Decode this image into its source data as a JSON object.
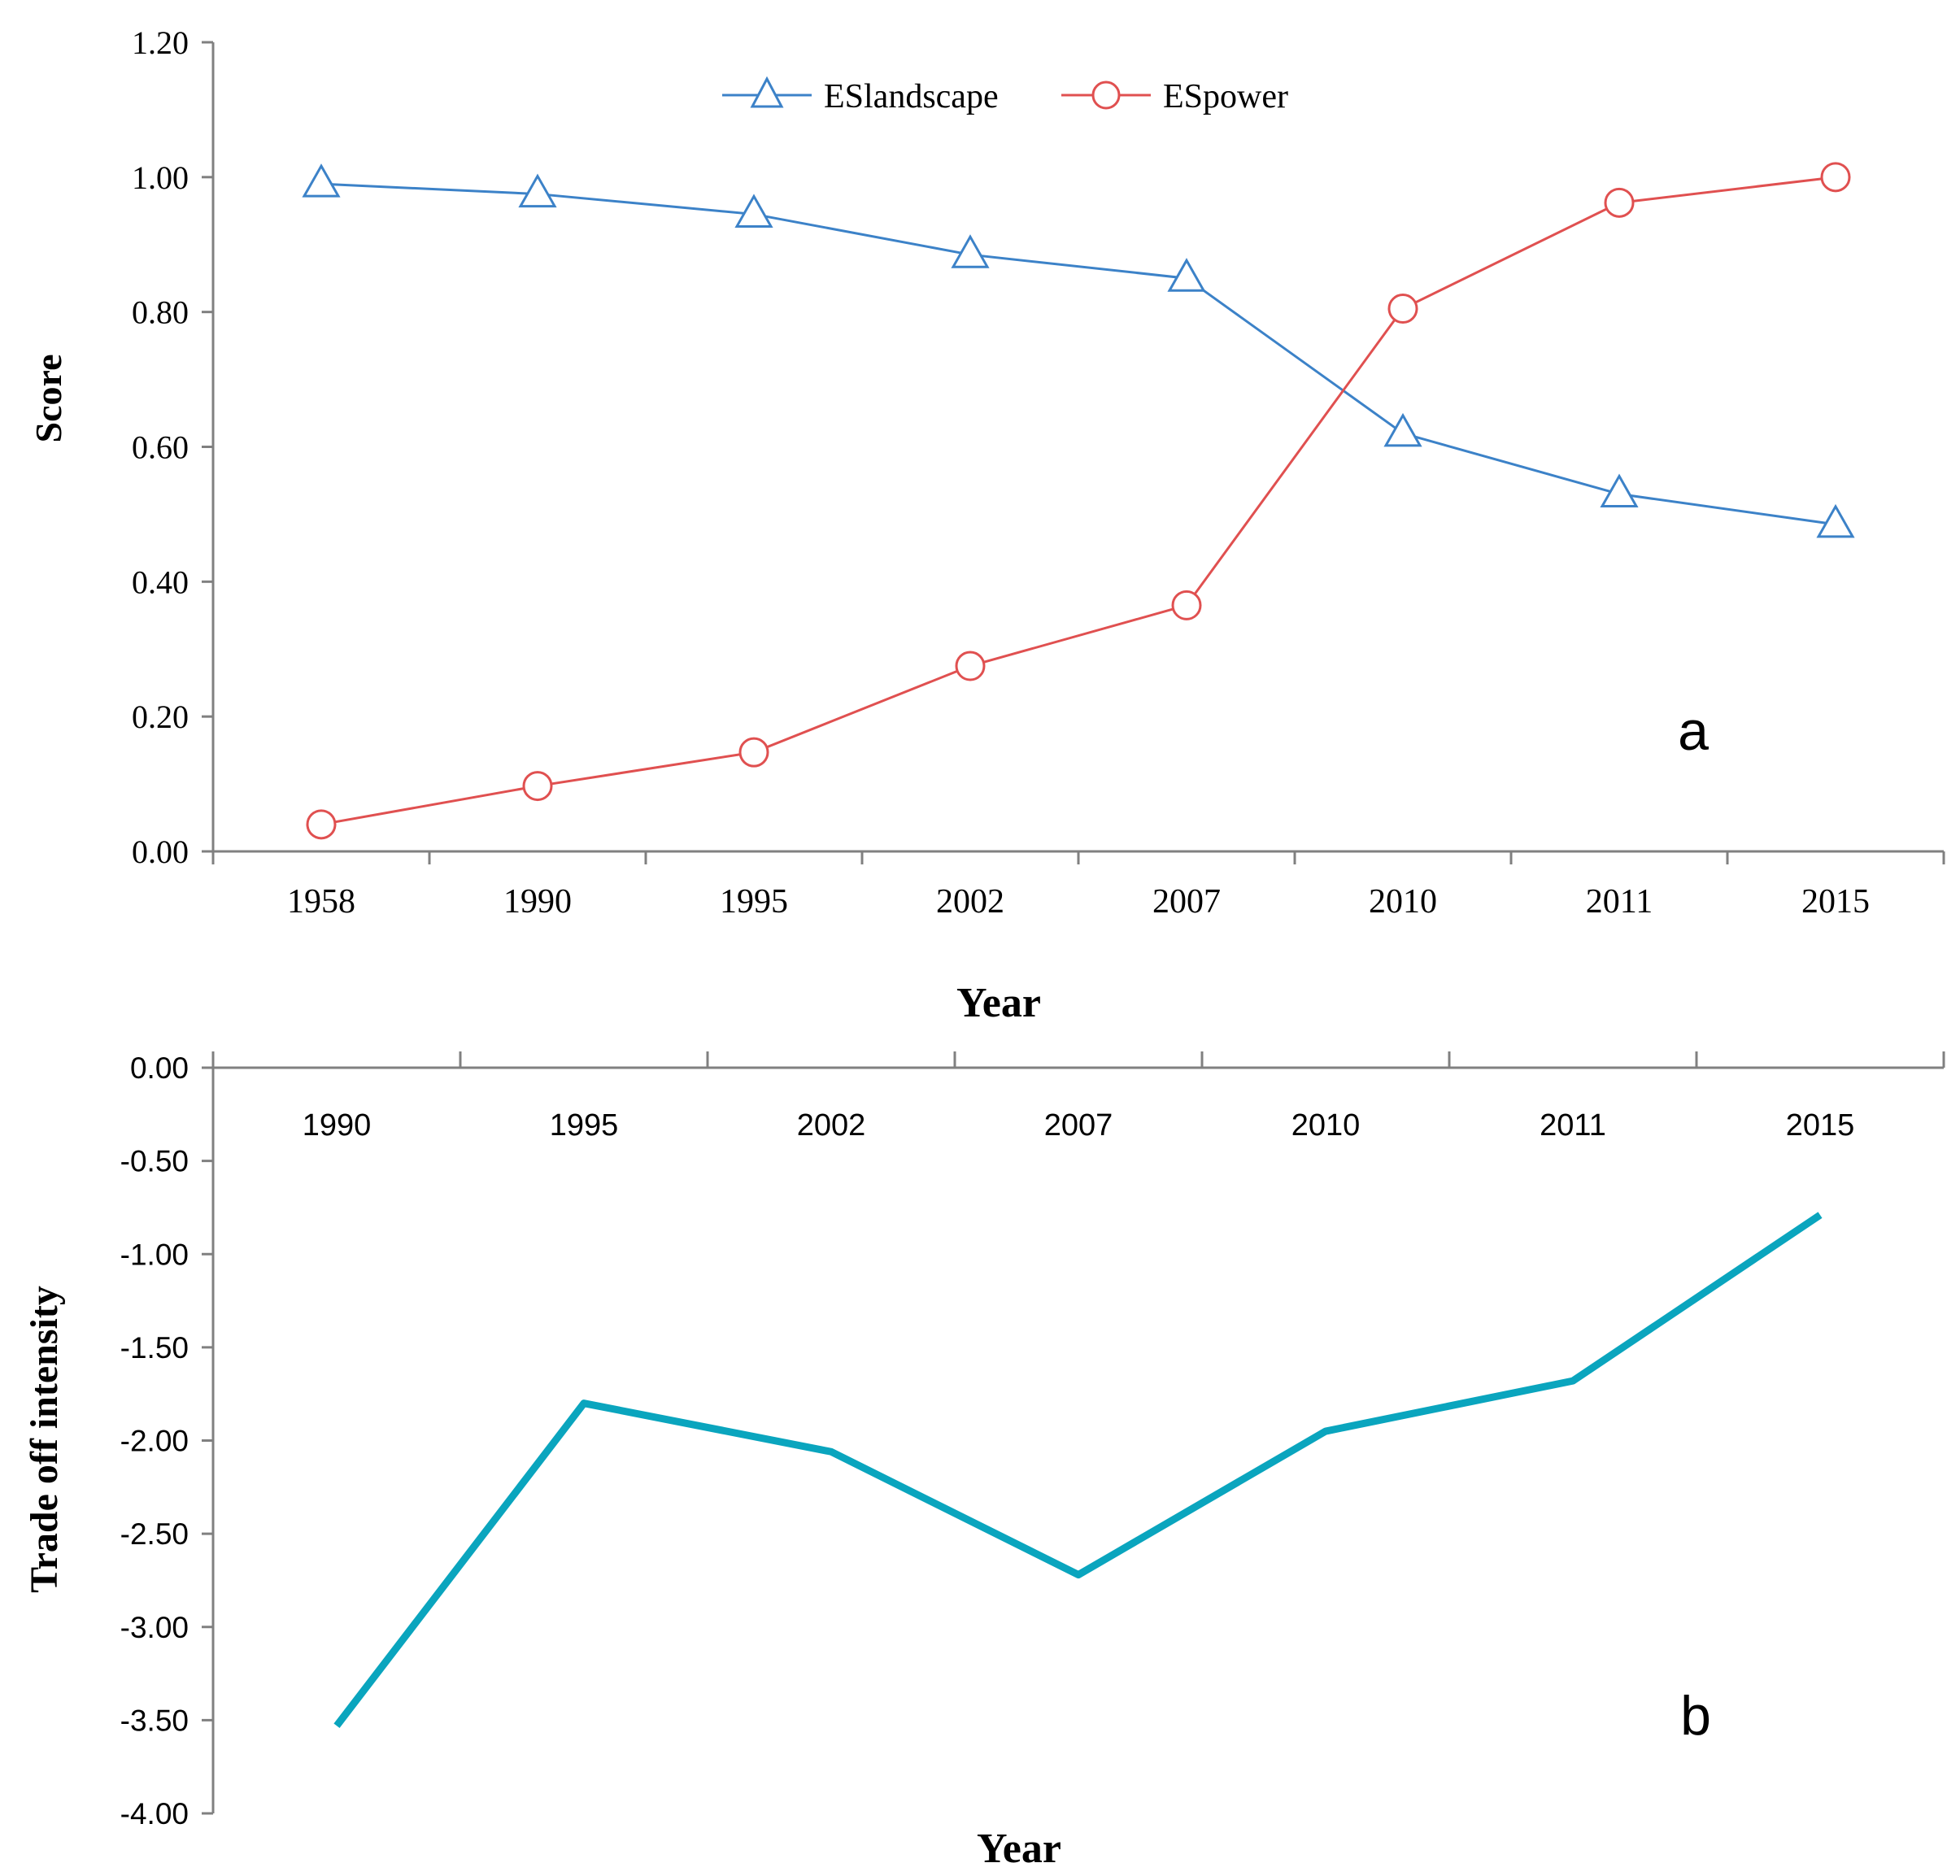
{
  "chart_data": [
    {
      "type": "line",
      "panel_label": "a",
      "categories": [
        "1958",
        "1990",
        "1995",
        "2002",
        "2007",
        "2010",
        "2011",
        "2015"
      ],
      "series": [
        {
          "name": "ESlandscape",
          "marker": "triangle",
          "color": "#3c82c8",
          "values": [
            0.99,
            0.975,
            0.945,
            0.885,
            0.85,
            0.62,
            0.53,
            0.485
          ]
        },
        {
          "name": "ESpower",
          "marker": "circle",
          "color": "#e05050",
          "values": [
            0.04,
            0.097,
            0.147,
            0.275,
            0.365,
            0.805,
            0.962,
            1.0
          ]
        }
      ],
      "xlabel": "Year",
      "ylabel": "Score",
      "ylim": [
        0,
        1.2
      ],
      "yticks": [
        "0.00",
        "0.20",
        "0.40",
        "0.60",
        "0.80",
        "1.00",
        "1.20"
      ],
      "legend_position": "top-center",
      "grid": false
    },
    {
      "type": "line",
      "panel_label": "b",
      "categories": [
        "1990",
        "1995",
        "2002",
        "2007",
        "2010",
        "2011",
        "2015"
      ],
      "series": [
        {
          "name": "Trade off intensity",
          "color": "#0aa5be",
          "values": [
            -3.53,
            -1.8,
            -2.06,
            -2.72,
            -1.95,
            -1.68,
            -0.79
          ]
        }
      ],
      "xlabel": "Year",
      "ylabel": "Trade off intensity",
      "ylim": [
        -4.0,
        0.0
      ],
      "yticks": [
        "0.00",
        "-0.50",
        "-1.00",
        "-1.50",
        "-2.00",
        "-2.50",
        "-3.00",
        "-3.50",
        "-4.00"
      ],
      "x_tick_labels_position": "top",
      "grid": false
    }
  ]
}
